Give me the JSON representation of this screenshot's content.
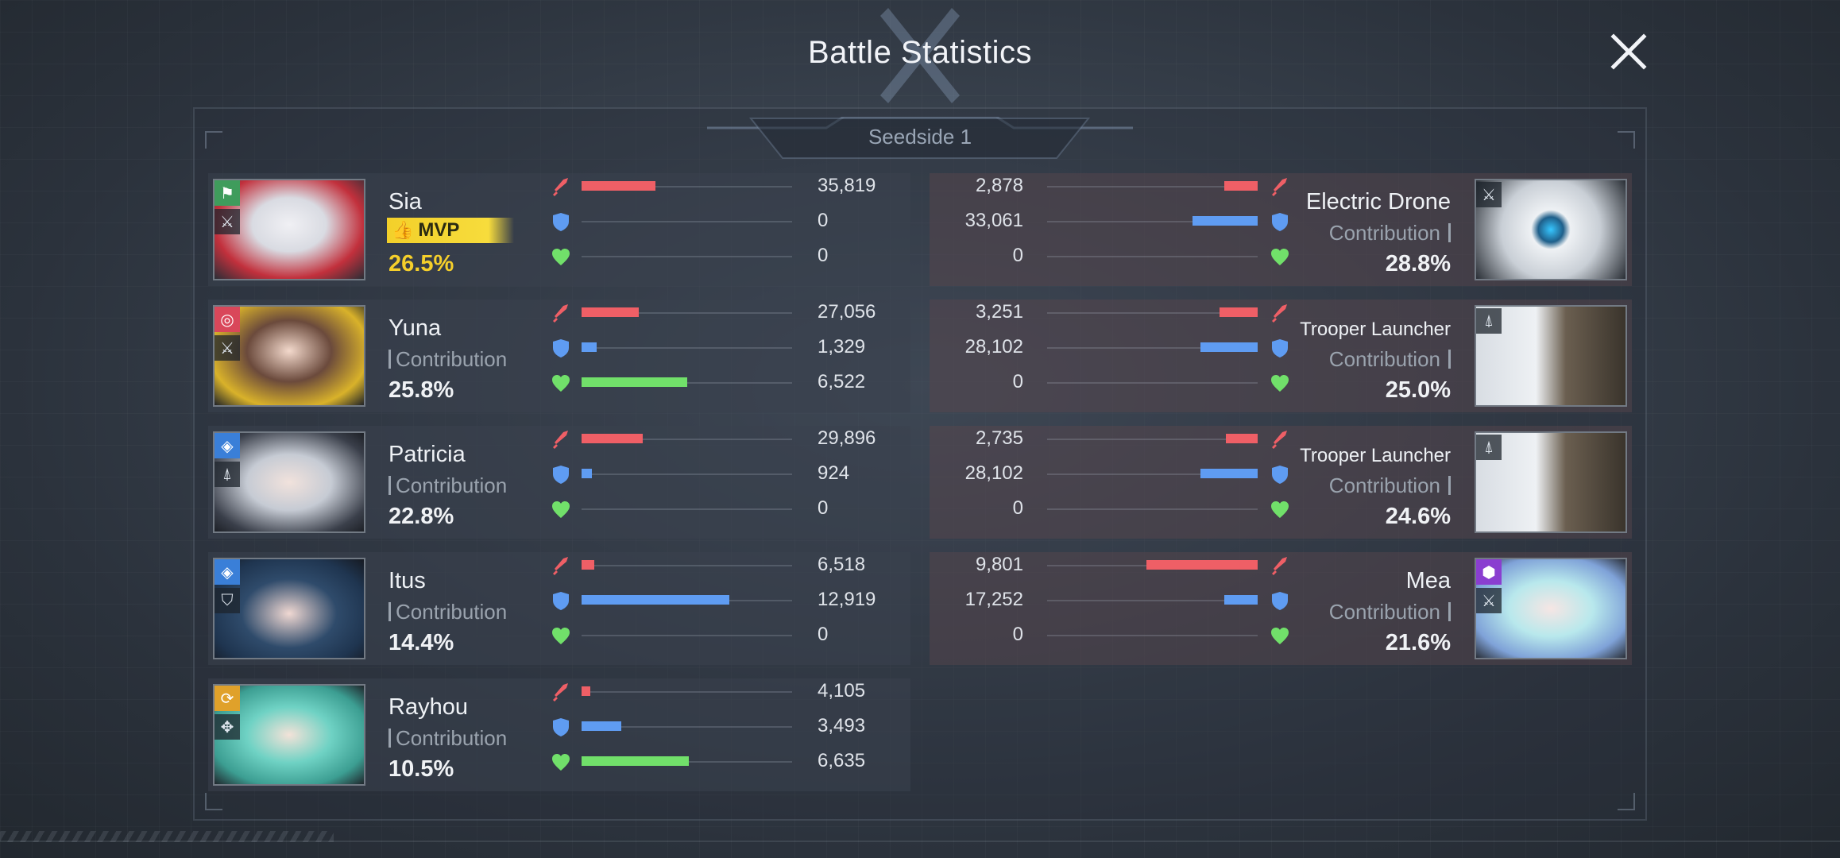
{
  "title": "Battle Statistics",
  "tab": "Seedside 1",
  "colors": {
    "attack": "#ef5f66",
    "defense": "#5f9cf2",
    "heal": "#71e06a",
    "mvp": "#f5cf2b"
  },
  "allies": [
    {
      "name": "Sia",
      "mvp": true,
      "mvp_label": "MVP",
      "contribution_label": "",
      "percent": "26.5%",
      "badge_icon": "strategist-icon",
      "badge_color": "#3f9c5c",
      "role_icon": "sword-icon",
      "attack": {
        "label": "35,819",
        "ratio": 0.35
      },
      "defense": {
        "label": "0",
        "ratio": 0
      },
      "heal": {
        "label": "0",
        "ratio": 0
      }
    },
    {
      "name": "Yuna",
      "mvp": false,
      "contribution_label": "Contribution",
      "percent": "25.8%",
      "badge_icon": "target-icon",
      "badge_color": "#d9475a",
      "role_icon": "sword-icon",
      "attack": {
        "label": "27,056",
        "ratio": 0.27
      },
      "defense": {
        "label": "1,329",
        "ratio": 0.07
      },
      "heal": {
        "label": "6,522",
        "ratio": 0.5
      }
    },
    {
      "name": "Patricia",
      "mvp": false,
      "contribution_label": "Contribution",
      "percent": "22.8%",
      "badge_icon": "diamond-icon",
      "badge_color": "#3a7fd8",
      "role_icon": "airborne-icon",
      "attack": {
        "label": "29,896",
        "ratio": 0.29
      },
      "defense": {
        "label": "924",
        "ratio": 0.05
      },
      "heal": {
        "label": "0",
        "ratio": 0
      }
    },
    {
      "name": "Itus",
      "mvp": false,
      "contribution_label": "Contribution",
      "percent": "14.4%",
      "badge_icon": "diamond-icon",
      "badge_color": "#3a7fd8",
      "role_icon": "shield-icon",
      "attack": {
        "label": "6,518",
        "ratio": 0.06
      },
      "defense": {
        "label": "12,919",
        "ratio": 0.7
      },
      "heal": {
        "label": "0",
        "ratio": 0
      }
    },
    {
      "name": "Rayhou",
      "mvp": false,
      "contribution_label": "Contribution",
      "percent": "10.5%",
      "badge_icon": "spiral-icon",
      "badge_color": "#e0a12a",
      "role_icon": "crosshair-icon",
      "attack": {
        "label": "4,105",
        "ratio": 0.04
      },
      "defense": {
        "label": "3,493",
        "ratio": 0.19
      },
      "heal": {
        "label": "6,635",
        "ratio": 0.51
      }
    }
  ],
  "enemies": [
    {
      "name": "Electric Drone",
      "small": false,
      "contribution_label": "Contribution",
      "percent": "28.8%",
      "role_icon": "sword-icon",
      "badge_icon": "",
      "attack": {
        "label": "2,878",
        "ratio": 0.16
      },
      "defense": {
        "label": "33,061",
        "ratio": 0.31
      },
      "heal": {
        "label": "0",
        "ratio": 0
      }
    },
    {
      "name": "Trooper Launcher",
      "small": true,
      "contribution_label": "Contribution",
      "percent": "25.0%",
      "role_icon": "airborne-icon",
      "badge_icon": "",
      "attack": {
        "label": "3,251",
        "ratio": 0.18
      },
      "defense": {
        "label": "28,102",
        "ratio": 0.27
      },
      "heal": {
        "label": "0",
        "ratio": 0
      }
    },
    {
      "name": "Trooper Launcher",
      "small": true,
      "contribution_label": "Contribution",
      "percent": "24.6%",
      "role_icon": "airborne-icon",
      "badge_icon": "",
      "attack": {
        "label": "2,735",
        "ratio": 0.15
      },
      "defense": {
        "label": "28,102",
        "ratio": 0.27
      },
      "heal": {
        "label": "0",
        "ratio": 0
      }
    },
    {
      "name": "Mea",
      "small": false,
      "contribution_label": "Contribution",
      "percent": "21.6%",
      "role_icon": "sword-icon",
      "badge_icon": "hex-icon",
      "attack": {
        "label": "9,801",
        "ratio": 0.53
      },
      "defense": {
        "label": "17,252",
        "ratio": 0.16
      },
      "heal": {
        "label": "0",
        "ratio": 0
      }
    }
  ]
}
